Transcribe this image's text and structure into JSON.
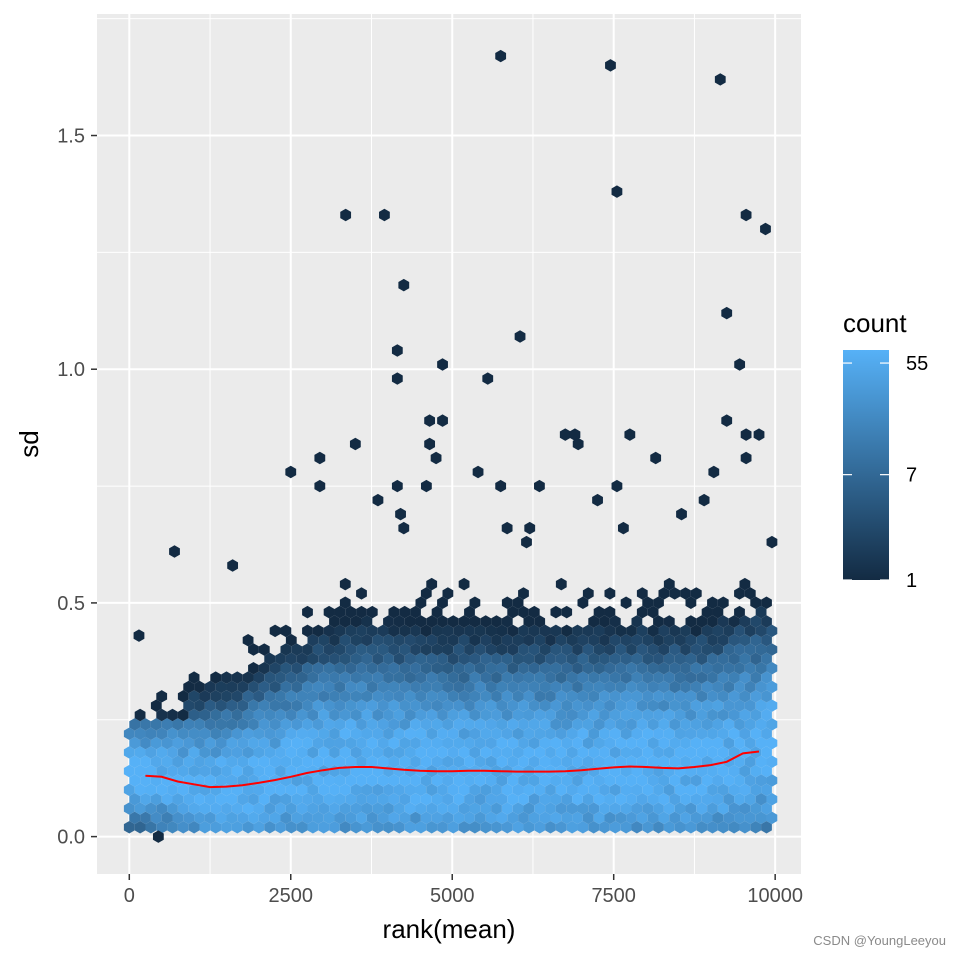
{
  "chart_data": {
    "type": "hexbin",
    "xlabel": "rank(mean)",
    "ylabel": "sd",
    "xlim": [
      -500,
      10400
    ],
    "ylim": [
      -0.08,
      1.76
    ],
    "x_ticks": [
      0,
      2500,
      5000,
      7500,
      10000
    ],
    "x_tick_labels": [
      "0",
      "2500",
      "5000",
      "7500",
      "10000"
    ],
    "y_ticks": [
      0.0,
      0.5,
      1.0,
      1.5
    ],
    "y_tick_labels": [
      "0.0",
      "0.5",
      "1.0",
      "1.5"
    ],
    "grid": true,
    "legend": {
      "title": "count",
      "placement": "right",
      "breaks": [
        1,
        7,
        55
      ],
      "break_labels": [
        "1",
        "7",
        "55"
      ],
      "low_color": "#132B43",
      "high_color": "#56B1F7",
      "max_count": 70
    },
    "smooth_line": {
      "color": "#ff0000",
      "x": [
        250,
        500,
        750,
        1000,
        1250,
        1500,
        1750,
        2000,
        2250,
        2500,
        2750,
        3000,
        3250,
        3500,
        3750,
        4000,
        4250,
        4500,
        4750,
        5000,
        5250,
        5500,
        5750,
        6000,
        6250,
        6500,
        6750,
        7000,
        7250,
        7500,
        7750,
        8000,
        8250,
        8500,
        8750,
        9000,
        9250,
        9500,
        9750
      ],
      "y": [
        0.13,
        0.128,
        0.118,
        0.112,
        0.106,
        0.107,
        0.11,
        0.115,
        0.121,
        0.128,
        0.136,
        0.142,
        0.147,
        0.149,
        0.149,
        0.146,
        0.143,
        0.141,
        0.14,
        0.14,
        0.141,
        0.141,
        0.14,
        0.139,
        0.139,
        0.139,
        0.14,
        0.142,
        0.145,
        0.148,
        0.15,
        0.149,
        0.147,
        0.146,
        0.149,
        0.153,
        0.16,
        0.178,
        0.182
      ]
    },
    "outliers": [
      [
        150,
        0.43
      ],
      [
        700,
        0.61
      ],
      [
        1600,
        0.58
      ],
      [
        2500,
        0.78
      ],
      [
        2950,
        0.81
      ],
      [
        2950,
        0.75
      ],
      [
        3350,
        1.33
      ],
      [
        3500,
        0.84
      ],
      [
        3950,
        1.33
      ],
      [
        3850,
        0.72
      ],
      [
        4150,
        1.04
      ],
      [
        4150,
        0.98
      ],
      [
        4250,
        1.18
      ],
      [
        4150,
        0.75
      ],
      [
        4200,
        0.69
      ],
      [
        4250,
        0.66
      ],
      [
        4600,
        0.75
      ],
      [
        4650,
        0.84
      ],
      [
        4650,
        0.89
      ],
      [
        4750,
        0.81
      ],
      [
        4850,
        1.01
      ],
      [
        4850,
        0.89
      ],
      [
        5400,
        0.78
      ],
      [
        5550,
        0.98
      ],
      [
        5750,
        1.67
      ],
      [
        5750,
        0.75
      ],
      [
        5850,
        0.66
      ],
      [
        6050,
        1.07
      ],
      [
        6150,
        0.63
      ],
      [
        6200,
        0.66
      ],
      [
        6350,
        0.75
      ],
      [
        6750,
        0.86
      ],
      [
        6900,
        0.86
      ],
      [
        6950,
        0.84
      ],
      [
        7250,
        0.72
      ],
      [
        7450,
        1.65
      ],
      [
        7550,
        1.38
      ],
      [
        7550,
        0.75
      ],
      [
        7650,
        0.66
      ],
      [
        7750,
        0.86
      ],
      [
        8150,
        0.81
      ],
      [
        8550,
        0.69
      ],
      [
        8900,
        0.72
      ],
      [
        9050,
        0.78
      ],
      [
        9150,
        1.62
      ],
      [
        9250,
        1.12
      ],
      [
        9250,
        0.89
      ],
      [
        9450,
        1.01
      ],
      [
        9550,
        1.33
      ],
      [
        9550,
        0.86
      ],
      [
        9550,
        0.81
      ],
      [
        9750,
        0.86
      ],
      [
        9850,
        1.3
      ],
      [
        9950,
        0.63
      ],
      [
        450,
        0.0
      ]
    ]
  },
  "watermark": "CSDN @YoungLeeyou"
}
